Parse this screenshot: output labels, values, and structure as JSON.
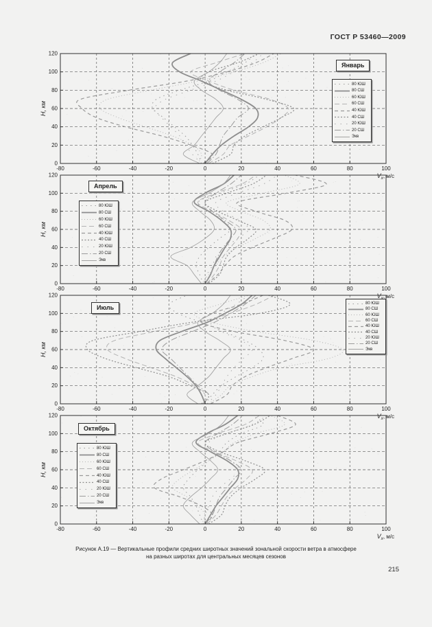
{
  "page": {
    "header": "ГОСТ Р 53460—2009",
    "page_number": "215",
    "caption": {
      "line1": "Рисунок  А.19  —  Вертикальные профили средних широтных значений зональной скорости ветра в атмосфере",
      "line2": "на разных широтах для центральных месяцев сезонов"
    }
  },
  "axes": {
    "x_label_base": "V",
    "x_label_sub": "x",
    "x_label_unit": ", м/с",
    "y_label": "H, км",
    "x_ticks": [
      -80,
      -60,
      -40,
      -20,
      0,
      20,
      40,
      60,
      80,
      100
    ],
    "y_ticks": [
      0,
      20,
      40,
      60,
      80,
      100,
      120
    ],
    "xlim": [
      -80,
      100
    ],
    "ylim": [
      0,
      120
    ],
    "heights_km": [
      0,
      10,
      20,
      30,
      40,
      50,
      60,
      70,
      80,
      90,
      100,
      110,
      120
    ],
    "grid": "dashed",
    "frame_color": "#2f2f2f",
    "grid_color": "#5a5a5a"
  },
  "legend_styles": {
    "80 ЮШ": {
      "dash": "1.5 5",
      "width": 1,
      "color": "#9b9b9b"
    },
    "80 СШ": {
      "dash": "",
      "width": 1.8,
      "color": "#8d8d8d"
    },
    "60 ЮШ": {
      "dash": "1 3",
      "width": 1,
      "color": "#b3b3b3"
    },
    "60 СШ": {
      "dash": "7 4",
      "width": 1,
      "color": "#b3b3b3"
    },
    "40 ЮШ": {
      "dash": "5 4",
      "width": 1.2,
      "color": "#999999"
    },
    "40 СШ": {
      "dash": "2 2.5",
      "width": 1.2,
      "color": "#8d8d8d"
    },
    "20 ЮШ": {
      "dash": "1.5 7",
      "width": 1,
      "color": "#ababab"
    },
    "20 СШ": {
      "dash": "9 3 1.5 3",
      "width": 1,
      "color": "#9b9b9b"
    },
    "Экв": {
      "dash": "",
      "width": 0.9,
      "color": "#a3a3a3"
    }
  },
  "chart_data": [
    {
      "type": "line",
      "title": "Январь",
      "xlabel": "Vx, м/с",
      "ylabel": "H, км",
      "xlim": [
        -80,
        100
      ],
      "ylim": [
        0,
        120
      ],
      "legend_position": "top-right",
      "x_is_value_y_is_height": true,
      "series": [
        {
          "name": "80 ЮШ",
          "values": [
            -2,
            -4,
            -7,
            -11,
            -17,
            -23,
            -29,
            -27,
            -14,
            2,
            12,
            22,
            28
          ]
        },
        {
          "name": "80 СШ",
          "values": [
            0,
            4,
            9,
            16,
            24,
            29,
            28,
            20,
            9,
            -2,
            -14,
            -18,
            -8
          ]
        },
        {
          "name": "60 ЮШ",
          "values": [
            -4,
            -2,
            -7,
            -18,
            -33,
            -48,
            -58,
            -54,
            -30,
            -4,
            16,
            32,
            42
          ]
        },
        {
          "name": "60 СШ",
          "values": [
            2,
            10,
            14,
            24,
            34,
            42,
            46,
            36,
            16,
            2,
            -8,
            6,
            22
          ]
        },
        {
          "name": "40 ЮШ",
          "values": [
            -1,
            4,
            -8,
            -24,
            -44,
            -60,
            -68,
            -69,
            -42,
            -10,
            12,
            28,
            38
          ]
        },
        {
          "name": "40 СШ",
          "values": [
            4,
            14,
            16,
            22,
            32,
            42,
            49,
            34,
            12,
            -2,
            2,
            18,
            30
          ]
        },
        {
          "name": "20 ЮШ",
          "values": [
            -2,
            -7,
            -11,
            -14,
            -19,
            -24,
            -28,
            -22,
            -8,
            6,
            16,
            26,
            32
          ]
        },
        {
          "name": "20 СШ",
          "values": [
            1,
            6,
            8,
            10,
            14,
            18,
            24,
            18,
            8,
            2,
            8,
            16,
            22
          ]
        },
        {
          "name": "Экв",
          "values": [
            -3,
            -12,
            -6,
            -2,
            2,
            6,
            10,
            6,
            -2,
            -6,
            2,
            8,
            12
          ]
        }
      ]
    },
    {
      "type": "line",
      "title": "Апрель",
      "xlabel": "Vx, м/с",
      "ylabel": "H, км",
      "xlim": [
        -80,
        100
      ],
      "ylim": [
        0,
        120
      ],
      "legend_position": "left",
      "series": [
        {
          "name": "80 ЮШ",
          "values": [
            -1,
            -3,
            -5,
            -3,
            2,
            8,
            14,
            10,
            2,
            -4,
            8,
            22,
            30
          ]
        },
        {
          "name": "80 СШ",
          "values": [
            0,
            3,
            5,
            8,
            11,
            14,
            14,
            9,
            2,
            -6,
            0,
            10,
            16
          ]
        },
        {
          "name": "60 ЮШ",
          "values": [
            -2,
            2,
            6,
            10,
            18,
            28,
            36,
            32,
            20,
            12,
            32,
            52,
            44
          ]
        },
        {
          "name": "60 СШ",
          "values": [
            1,
            5,
            8,
            10,
            14,
            18,
            20,
            13,
            4,
            -4,
            6,
            20,
            28
          ]
        },
        {
          "name": "40 ЮШ",
          "values": [
            1,
            7,
            11,
            16,
            26,
            38,
            48,
            44,
            28,
            18,
            45,
            67,
            50
          ]
        },
        {
          "name": "40 СШ",
          "values": [
            2,
            8,
            10,
            12,
            17,
            24,
            28,
            18,
            7,
            0,
            12,
            26,
            34
          ]
        },
        {
          "name": "20 ЮШ",
          "values": [
            -1,
            1,
            4,
            6,
            11,
            18,
            24,
            19,
            10,
            6,
            18,
            32,
            40
          ]
        },
        {
          "name": "20 СШ",
          "values": [
            0,
            3,
            5,
            7,
            10,
            14,
            17,
            11,
            4,
            0,
            6,
            14,
            20
          ]
        },
        {
          "name": "Экв",
          "values": [
            -2,
            -6,
            -10,
            -19,
            -8,
            0,
            5,
            3,
            -3,
            -7,
            2,
            10,
            14
          ]
        }
      ]
    },
    {
      "type": "line",
      "title": "Июль",
      "xlabel": "Vx, м/с",
      "ylabel": "H, км",
      "xlim": [
        -80,
        100
      ],
      "ylim": [
        0,
        120
      ],
      "legend_position": "top-right",
      "series": [
        {
          "name": "80 ЮШ",
          "values": [
            0,
            4,
            9,
            17,
            26,
            32,
            30,
            22,
            10,
            -2,
            -15,
            -20,
            -10
          ]
        },
        {
          "name": "80 СШ",
          "values": [
            0,
            -2,
            -5,
            -10,
            -16,
            -22,
            -27,
            -25,
            -13,
            1,
            11,
            20,
            26
          ]
        },
        {
          "name": "60 ЮШ",
          "values": [
            2,
            9,
            14,
            26,
            42,
            68,
            76,
            60,
            28,
            4,
            -6,
            8,
            24
          ]
        },
        {
          "name": "60 СШ",
          "values": [
            -1,
            0,
            -6,
            -16,
            -30,
            -44,
            -54,
            -50,
            -28,
            -4,
            14,
            28,
            38
          ]
        },
        {
          "name": "40 ЮШ",
          "values": [
            3,
            12,
            15,
            22,
            34,
            48,
            60,
            44,
            16,
            -2,
            4,
            20,
            32
          ]
        },
        {
          "name": "40 СШ",
          "values": [
            -2,
            2,
            -8,
            -20,
            -38,
            -55,
            -65,
            -62,
            -36,
            -8,
            30,
            47,
            35
          ]
        },
        {
          "name": "20 ЮШ",
          "values": [
            1,
            6,
            9,
            12,
            16,
            21,
            26,
            20,
            9,
            3,
            9,
            17,
            24
          ]
        },
        {
          "name": "20 СШ",
          "values": [
            -1,
            2,
            -4,
            -9,
            -14,
            -19,
            -24,
            -19,
            -7,
            5,
            14,
            22,
            28
          ]
        },
        {
          "name": "Экв",
          "values": [
            -4,
            -10,
            -4,
            2,
            6,
            10,
            14,
            8,
            0,
            -4,
            4,
            10,
            14
          ]
        }
      ]
    },
    {
      "type": "line",
      "title": "Октябрь",
      "xlabel": "Vx, м/с",
      "ylabel": "H, км",
      "xlim": [
        -80,
        100
      ],
      "ylim": [
        0,
        120
      ],
      "legend_position": "left",
      "series": [
        {
          "name": "80 ЮШ",
          "values": [
            -1,
            -3,
            -5,
            -8,
            -12,
            -9,
            -4,
            2,
            8,
            12,
            20,
            32,
            26
          ]
        },
        {
          "name": "80 СШ",
          "values": [
            0,
            3,
            6,
            10,
            14,
            18,
            18,
            12,
            3,
            -5,
            1,
            11,
            18
          ]
        },
        {
          "name": "60 ЮШ",
          "values": [
            -2,
            0,
            -4,
            -10,
            -18,
            -14,
            -6,
            2,
            10,
            16,
            28,
            44,
            36
          ]
        },
        {
          "name": "60 СШ",
          "values": [
            1,
            6,
            9,
            12,
            17,
            23,
            26,
            17,
            5,
            -4,
            7,
            22,
            30
          ]
        },
        {
          "name": "40 ЮШ",
          "values": [
            0,
            4,
            -2,
            -14,
            -28,
            -24,
            -12,
            0,
            10,
            18,
            36,
            50,
            40
          ]
        },
        {
          "name": "40 СШ",
          "values": [
            2,
            9,
            11,
            14,
            20,
            28,
            33,
            22,
            8,
            0,
            12,
            27,
            36
          ]
        },
        {
          "name": "20 ЮШ",
          "values": [
            -1,
            0,
            2,
            4,
            8,
            14,
            19,
            14,
            6,
            2,
            12,
            26,
            34
          ]
        },
        {
          "name": "20 СШ",
          "values": [
            0,
            4,
            6,
            8,
            12,
            16,
            20,
            14,
            5,
            0,
            7,
            15,
            21
          ]
        },
        {
          "name": "Экв",
          "values": [
            -3,
            -8,
            -12,
            -8,
            -2,
            3,
            7,
            3,
            -3,
            -7,
            2,
            9,
            13
          ]
        }
      ]
    }
  ]
}
